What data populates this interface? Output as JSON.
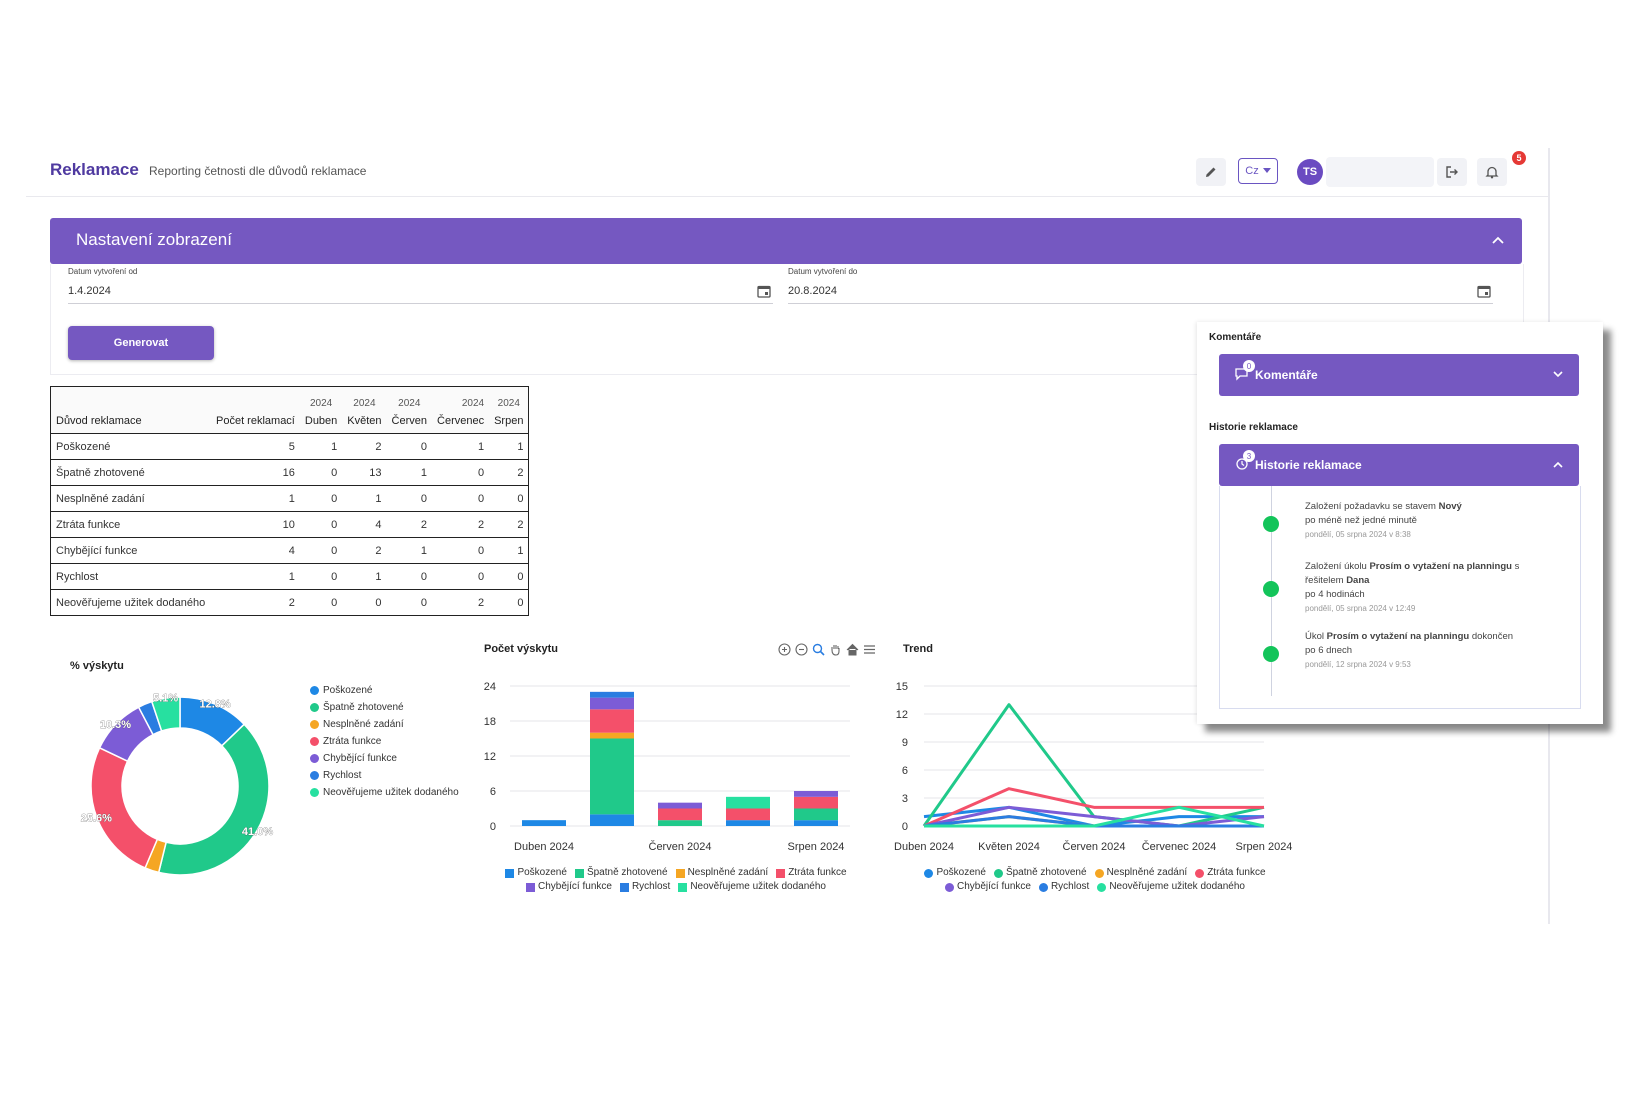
{
  "header": {
    "title": "Reklamace",
    "subtitle": "Reporting četnosti dle důvodů reklamace",
    "lang": "Cz",
    "avatar_initials": "TS",
    "notif_count": "5"
  },
  "settings": {
    "title": "Nastavení zobrazení",
    "date_from_label": "Datum vytvoření od",
    "date_from": "1.4.2024",
    "date_to_label": "Datum vytvoření do",
    "date_to": "20.8.2024",
    "generate": "Generovat"
  },
  "table": {
    "year_row": [
      "2024",
      "2024",
      "2024",
      "2024",
      "2024"
    ],
    "columns": [
      "Důvod reklamace",
      "Počet reklamací",
      "Duben",
      "Květen",
      "Červen",
      "Červenec",
      "Srpen"
    ],
    "rows": [
      [
        "Poškozené",
        "5",
        "1",
        "2",
        "0",
        "1",
        "1"
      ],
      [
        "Špatně zhotovené",
        "16",
        "0",
        "13",
        "1",
        "0",
        "2"
      ],
      [
        "Nesplněné zadání",
        "1",
        "0",
        "1",
        "0",
        "0",
        "0"
      ],
      [
        "Ztráta funkce",
        "10",
        "0",
        "4",
        "2",
        "2",
        "2"
      ],
      [
        "Chybějící funkce",
        "4",
        "0",
        "2",
        "1",
        "0",
        "1"
      ],
      [
        "Rychlost",
        "1",
        "0",
        "1",
        "0",
        "0",
        "0"
      ],
      [
        "Neověřujeme užitek dodaného",
        "2",
        "0",
        "0",
        "0",
        "2",
        "0"
      ]
    ]
  },
  "colors": {
    "Poškozené": "#1e88e5",
    "Špatně zhotovené": "#20c98a",
    "Nesplněné zadání": "#f5a623",
    "Ztráta funkce": "#f4506a",
    "Chybějící funkce": "#7c5cd6",
    "Rychlost": "#2a7de1",
    "Neověřujeme užitek dodaného": "#27e0a0"
  },
  "chart_data": [
    {
      "type": "pie",
      "title": "% výskytu",
      "labels": [
        "Poškozené",
        "Špatně zhotovené",
        "Nesplněné zadání",
        "Ztráta funkce",
        "Chybějící funkce",
        "Rychlost",
        "Neověřujeme užitek dodaného"
      ],
      "values": [
        5,
        16,
        1,
        10,
        4,
        1,
        2
      ],
      "data_labels": [
        "12.8%",
        "41.0%",
        "",
        "25.6%",
        "10.3%",
        "",
        "5.1%"
      ],
      "legend_position": "right"
    },
    {
      "type": "bar",
      "title": "Počet výskytu",
      "stacked": true,
      "categories": [
        "Duben 2024",
        "Květen 2024",
        "Červen 2024",
        "Červenec 2024",
        "Srpen 2024"
      ],
      "x_tick_labels": [
        "Duben 2024",
        "",
        "Červen 2024",
        "",
        "Srpen 2024"
      ],
      "ylim": [
        0,
        24
      ],
      "yticks": [
        0,
        6,
        12,
        18,
        24
      ],
      "series": [
        {
          "name": "Poškozené",
          "values": [
            1,
            2,
            0,
            1,
            1
          ]
        },
        {
          "name": "Špatně zhotovené",
          "values": [
            0,
            13,
            1,
            0,
            2
          ]
        },
        {
          "name": "Nesplněné zadání",
          "values": [
            0,
            1,
            0,
            0,
            0
          ]
        },
        {
          "name": "Ztráta funkce",
          "values": [
            0,
            4,
            2,
            2,
            2
          ]
        },
        {
          "name": "Chybějící funkce",
          "values": [
            0,
            2,
            1,
            0,
            1
          ]
        },
        {
          "name": "Rychlost",
          "values": [
            0,
            1,
            0,
            0,
            0
          ]
        },
        {
          "name": "Neověřujeme užitek dodaného",
          "values": [
            0,
            0,
            0,
            2,
            0
          ]
        }
      ],
      "legend_position": "bottom"
    },
    {
      "type": "line",
      "title": "Trend",
      "categories": [
        "Duben 2024",
        "Květen 2024",
        "Červen 2024",
        "Červenec 2024",
        "Srpen 2024"
      ],
      "ylim": [
        0,
        15
      ],
      "yticks": [
        0,
        3,
        6,
        9,
        12,
        15
      ],
      "series": [
        {
          "name": "Poškozené",
          "values": [
            1,
            2,
            0,
            1,
            1
          ]
        },
        {
          "name": "Špatně zhotovené",
          "values": [
            0,
            13,
            1,
            0,
            2
          ]
        },
        {
          "name": "Nesplněné zadání",
          "values": [
            0,
            1,
            0,
            0,
            0
          ]
        },
        {
          "name": "Ztráta funkce",
          "values": [
            0,
            4,
            2,
            2,
            2
          ]
        },
        {
          "name": "Chybějící funkce",
          "values": [
            0,
            2,
            1,
            0,
            1
          ]
        },
        {
          "name": "Rychlost",
          "values": [
            0,
            1,
            0,
            0,
            0
          ]
        },
        {
          "name": "Neověřujeme užitek dodaného",
          "values": [
            0,
            0,
            0,
            2,
            0
          ]
        }
      ],
      "legend_position": "bottom"
    }
  ],
  "side": {
    "comments_label": "Komentáře",
    "comments_title": "Komentáře",
    "comments_count": "0",
    "history_label": "Historie reklamace",
    "history_title": "Historie reklamace",
    "history_count": "3",
    "events": [
      {
        "pre": "Založení požadavku se stavem ",
        "bold": "Nový",
        "post": "",
        "line2": "po méně než jedné minutě",
        "time": "pondělí, 05 srpna 2024 v 8:38"
      },
      {
        "pre": "Založení úkolu ",
        "bold": "Prosím o vytažení na planningu",
        "post": " s",
        "line1b_pre": "řešitelem ",
        "line1b_bold": "Dana",
        "line2": "po 4 hodinách",
        "time": "pondělí, 05 srpna 2024 v 12:49"
      },
      {
        "pre": "Úkol ",
        "bold": "Prosím o vytažení na planningu",
        "post": " dokončen",
        "line2": "po 6 dnech",
        "time": "pondělí, 12 srpna 2024 v 9:53"
      }
    ]
  }
}
